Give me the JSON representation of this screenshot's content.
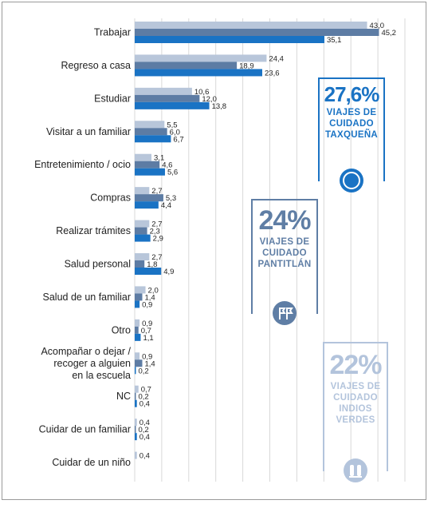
{
  "chart_data": {
    "type": "bar",
    "orientation": "horizontal",
    "categories": [
      "Trabajar",
      "Regreso a casa",
      "Estudiar",
      "Visitar a un familiar",
      "Entretenimiento / ocio",
      "Compras",
      "Realizar trámites",
      "Salud personal",
      "Salud de un familiar",
      "Otro",
      "Acompañar o dejar / recoger a alguien en la escuela",
      "NC",
      "Cuidar de un familiar",
      "Cuidar de un niño"
    ],
    "category_lines": [
      [
        "Trabajar"
      ],
      [
        "Regreso a casa"
      ],
      [
        "Estudiar"
      ],
      [
        "Visitar a un familiar"
      ],
      [
        "Entretenimiento / ocio"
      ],
      [
        "Compras"
      ],
      [
        "Realizar trámites"
      ],
      [
        "Salud personal"
      ],
      [
        "Salud de un familiar"
      ],
      [
        "Otro"
      ],
      [
        "Acompañar o dejar /",
        "recoger a alguien",
        "en la escuela"
      ],
      [
        "NC"
      ],
      [
        "Cuidar de un familiar"
      ],
      [
        "Cuidar de un niño"
      ]
    ],
    "series": [
      {
        "values": [
          43.0,
          24.4,
          10.6,
          5.5,
          3.1,
          2.7,
          2.7,
          2.7,
          2.0,
          0.9,
          0.9,
          0.7,
          0.4,
          0.4
        ],
        "labels": [
          "43,0",
          "24,4",
          "10,6",
          "5,5",
          "3,1",
          "2,7",
          "2,7",
          "2,7",
          "2,0",
          "0,9",
          "0,9",
          "0,7",
          "0,4",
          "0,4"
        ],
        "color": "#b8c6da"
      },
      {
        "values": [
          45.2,
          18.9,
          12.0,
          6.0,
          4.6,
          5.3,
          2.3,
          1.8,
          1.4,
          0.7,
          1.4,
          0.2,
          0.2,
          null
        ],
        "labels": [
          "45,2",
          "18,9",
          "12,0",
          "6,0",
          "4,6",
          "5,3",
          "2,3",
          "1,8",
          "1,4",
          "0,7",
          "1,4",
          "0,2",
          "0,2",
          null
        ],
        "color": "#5d7ca4"
      },
      {
        "values": [
          35.1,
          23.6,
          13.8,
          6.7,
          5.6,
          4.4,
          2.9,
          4.9,
          0.9,
          1.1,
          0.2,
          0.4,
          0.4,
          null
        ],
        "labels": [
          "35,1",
          "23,6",
          "13,8",
          "6,7",
          "5,6",
          "4,4",
          "2,9",
          "4,9",
          "0,9",
          "1,1",
          "0,2",
          "0,4",
          "0,4",
          null
        ],
        "color": "#1a73c4"
      }
    ],
    "xlim": [
      0,
      50
    ],
    "grid": true
  },
  "badges": {
    "taxquena": {
      "percent": "27,6%",
      "line1": "VIAJES DE",
      "line2": "CUIDADO",
      "line3": "TAXQUEÑA",
      "color": "#1a73c4",
      "icon": "moon-icon"
    },
    "pantitlan": {
      "percent": "24%",
      "line1": "VIAJES DE",
      "line2": "CUIDADO",
      "line3": "PANTITLÁN",
      "color": "#5f7ea5",
      "icon": "flags-icon"
    },
    "indios_verdes": {
      "percent": "22%",
      "line1": "VIAJES DE",
      "line2": "CUIDADO",
      "line3": "INDIOS",
      "line4": "VERDES",
      "color": "#b3c4dc",
      "icon": "statues-icon"
    }
  }
}
